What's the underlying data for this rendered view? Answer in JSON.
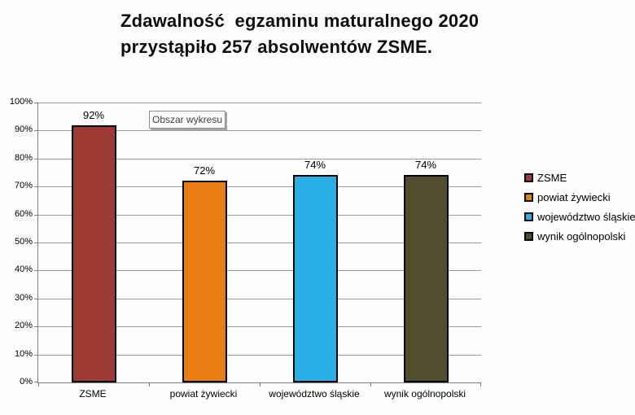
{
  "title": {
    "line1": "Zdawalność  egzaminu maturalnego 2020",
    "line2": "przystąpiło 257 absolwentów ZSME."
  },
  "tooltip": {
    "label": "Obszar wykresu"
  },
  "chart_data": {
    "type": "bar",
    "title": "Zdawalność egzaminu maturalnego 2020 przystąpiło 257 absolwentów ZSME.",
    "categories": [
      "ZSME",
      "powiat żywiecki",
      "województwo śląskie",
      "wynik ogólnopolski"
    ],
    "values": [
      92,
      72,
      74,
      74
    ],
    "value_labels": [
      "92%",
      "72%",
      "74%",
      "74%"
    ],
    "colors": [
      "#9d3a33",
      "#e87d12",
      "#2aaee5",
      "#514d2d"
    ],
    "bar_border_color": "#000000",
    "xlabel": "",
    "ylabel": "",
    "ylim": [
      0,
      100
    ],
    "ytick_step": 10,
    "yticks": [
      "0%",
      "10%",
      "20%",
      "30%",
      "40%",
      "50%",
      "60%",
      "70%",
      "80%",
      "90%",
      "100%"
    ],
    "grid": true,
    "gridline_color": "#9a9a9a",
    "axis_color": "#7f7f7f",
    "legend_position": "right"
  },
  "legend": {
    "items": [
      {
        "label": "ZSME",
        "color": "#9d3a33"
      },
      {
        "label": "powiat żywiecki",
        "color": "#e87d12"
      },
      {
        "label": "województwo śląskie",
        "color": "#2aaee5"
      },
      {
        "label": "wynik ogólnopolski",
        "color": "#514d2d"
      }
    ]
  }
}
